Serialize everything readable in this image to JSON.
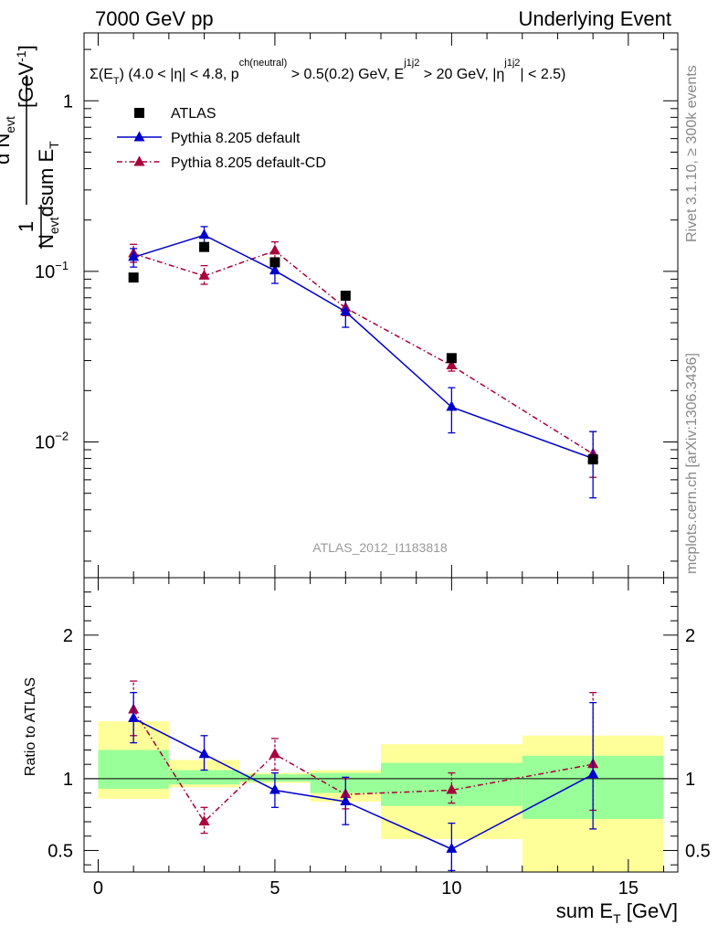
{
  "header": {
    "energy": "7000 GeV pp",
    "process": "Underlying Event"
  },
  "side_labels": {
    "rivet": "Rivet 3.1.10, ≥ 300k events",
    "mcplots": "mcplots.cern.ch [arXiv:1306.3436]"
  },
  "watermark": "ATLAS_2012_I1183818",
  "selection": {
    "lead": "Σ(E",
    "sub_T": "T",
    "after_sum": ") (4.0 < |η| < 4.8, p",
    "sup_ch": "ch(neutral)",
    "after_p": " > 0.5(0.2) GeV, E",
    "sup_j": "j1j2",
    "after_e": " > 20 GeV, |η",
    "sup_j2": "j1j2",
    "tail": "| < 2.5)"
  },
  "y_axis_main": {
    "one": "1",
    "numer": "d N",
    "numer_sub": "evt",
    "denom_n": "N",
    "denom_n_sub": "evt",
    "denom_rest": "dsum E",
    "denom_sub": "T",
    "unit": "[GeV",
    "unit_sup": "-1",
    "unit_end": "]"
  },
  "legend": {
    "atlas": "ATLAS",
    "pythia": "Pythia 8.205 default",
    "pythia_cd": "Pythia 8.205 default-CD"
  },
  "colors": {
    "data": "#000000",
    "pythia": "#0000cc",
    "pythia_cd": "#a8003a",
    "band_inner": "#99ff99",
    "band_outer": "#ffff99"
  },
  "chart_data": [
    {
      "type": "scatter",
      "panel": "main",
      "yscale": "log",
      "xlim": [
        -0.4,
        16.4
      ],
      "ylim": [
        0.0016,
        2.5
      ],
      "x_ticks": [
        0,
        5,
        10,
        15
      ],
      "y_ticks": [
        {
          "value": 1,
          "label": "1"
        },
        {
          "value": 0.1,
          "label": "10",
          "sup": "−1"
        },
        {
          "value": 0.01,
          "label": "10",
          "sup": "−2"
        }
      ],
      "series": [
        {
          "name": "ATLAS",
          "marker": "square",
          "x": [
            1,
            3,
            5,
            7,
            10,
            14
          ],
          "y": [
            0.092,
            0.139,
            0.113,
            0.072,
            0.031,
            0.0079
          ]
        },
        {
          "name": "Pythia 8.205 default",
          "marker": "triangle",
          "line": "solid",
          "x": [
            1,
            3,
            5,
            7,
            10,
            14
          ],
          "y": [
            0.121,
            0.163,
            0.101,
            0.058,
            0.016,
            0.008
          ],
          "err_lo": [
            0.106,
            0.147,
            0.085,
            0.047,
            0.0113,
            0.0047
          ],
          "err_hi": [
            0.136,
            0.183,
            0.118,
            0.07,
            0.0208,
            0.0115
          ]
        },
        {
          "name": "Pythia 8.205 default-CD",
          "marker": "triangle",
          "line": "dashdot",
          "x": [
            1,
            3,
            5,
            7,
            10,
            14
          ],
          "y": [
            0.127,
            0.094,
            0.132,
            0.061,
            0.028,
            0.0085
          ],
          "err_lo": [
            0.113,
            0.084,
            0.12,
            0.055,
            0.026,
            0.0062
          ],
          "err_hi": [
            0.144,
            0.108,
            0.149,
            0.069,
            0.0325,
            0.0115
          ]
        }
      ]
    },
    {
      "type": "scatter",
      "panel": "ratio",
      "ylabel": "Ratio to ATLAS",
      "xlabel": "sum E",
      "xlabel_sub": "T",
      "xlabel_unit": " [GeV]",
      "xlim": [
        -0.4,
        16.4
      ],
      "ylim": [
        0.35,
        2.4
      ],
      "x_ticks": [
        0,
        5,
        10,
        15
      ],
      "y_ticks": [
        0.5,
        1,
        2
      ],
      "reference": 1,
      "bands": [
        {
          "x0": 0,
          "x1": 2,
          "inner": [
            0.93,
            1.2
          ],
          "outer": [
            0.86,
            1.4
          ]
        },
        {
          "x0": 2,
          "x1": 4,
          "inner": [
            0.96,
            1.06
          ],
          "outer": [
            0.94,
            1.13
          ]
        },
        {
          "x0": 4,
          "x1": 6,
          "inner": [
            0.98,
            1.03
          ],
          "outer": [
            0.97,
            1.04
          ]
        },
        {
          "x0": 6,
          "x1": 8,
          "inner": [
            0.9,
            1.04
          ],
          "outer": [
            0.84,
            1.06
          ]
        },
        {
          "x0": 8,
          "x1": 12,
          "inner": [
            0.81,
            1.11
          ],
          "outer": [
            0.58,
            1.24
          ]
        },
        {
          "x0": 12,
          "x1": 16,
          "inner": [
            0.72,
            1.16
          ],
          "outer": [
            0.33,
            1.3
          ]
        }
      ],
      "series": [
        {
          "name": "Pythia 8.205 default",
          "x": [
            1,
            3,
            5,
            7,
            10,
            14
          ],
          "y": [
            1.42,
            1.17,
            0.92,
            0.84,
            0.51,
            1.03
          ],
          "err_lo": [
            1.25,
            1.06,
            0.8,
            0.68,
            0.36,
            0.65
          ],
          "err_hi": [
            1.6,
            1.3,
            1.04,
            1.01,
            0.69,
            1.53
          ]
        },
        {
          "name": "Pythia 8.205 default-CD",
          "x": [
            1,
            3,
            5,
            7,
            10,
            14
          ],
          "y": [
            1.48,
            0.7,
            1.17,
            0.89,
            0.92,
            1.1
          ],
          "err_lo": [
            1.3,
            0.62,
            1.06,
            0.79,
            0.83,
            0.78
          ],
          "err_hi": [
            1.68,
            0.8,
            1.28,
            1.0,
            1.04,
            1.6
          ]
        }
      ]
    }
  ]
}
